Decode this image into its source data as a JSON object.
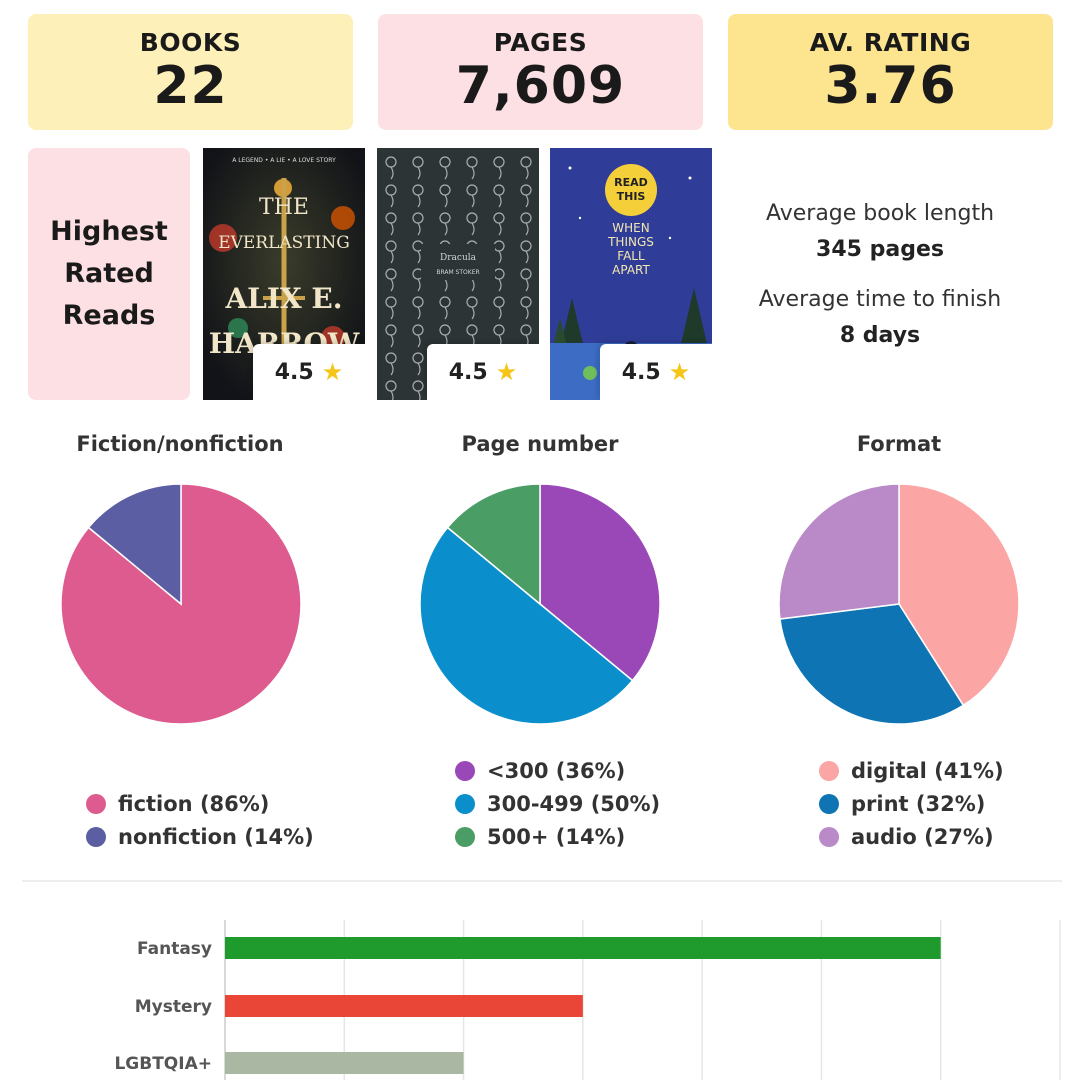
{
  "stats": {
    "books_label": "BOOKS",
    "books_value": "22",
    "pages_label": "PAGES",
    "pages_value": "7,609",
    "rating_label": "AV. RATING",
    "rating_value": "3.76"
  },
  "highest_rated": {
    "title_lines": [
      "Highest",
      "Rated",
      "Reads"
    ],
    "books": [
      {
        "rating": "4.5",
        "cover_text": [
          "A LEGEND • A LIE • A LOVE STORY",
          "THE",
          "EVERLASTING",
          "ALIX E.",
          "HARROW"
        ]
      },
      {
        "rating": "4.5",
        "cover_text": [
          "Dracula",
          "BRAM STOKER"
        ]
      },
      {
        "rating": "4.5",
        "cover_text": [
          "READ",
          "THIS",
          "WHEN",
          "THINGS",
          "FALL",
          "APART"
        ]
      }
    ],
    "star_icon": "star-icon"
  },
  "book_stats": {
    "avg_length_label": "Average book length",
    "avg_length_value": "345 pages",
    "avg_time_label": "Average time to finish",
    "avg_time_value": "8 days"
  },
  "chart_data": [
    {
      "type": "pie",
      "title": "Fiction/nonfiction",
      "slices": [
        {
          "label": "fiction (86%)",
          "value": 86,
          "color": "#de5b8f"
        },
        {
          "label": "nonfiction (14%)",
          "value": 14,
          "color": "#5c5ea3"
        }
      ]
    },
    {
      "type": "pie",
      "title": "Page number",
      "slices": [
        {
          "label": "<300 (36%)",
          "value": 36,
          "color": "#9a47b8"
        },
        {
          "label": "300-499 (50%)",
          "value": 50,
          "color": "#0b8fcc"
        },
        {
          "label": "500+ (14%)",
          "value": 14,
          "color": "#4a9d65"
        }
      ]
    },
    {
      "type": "pie",
      "title": "Format",
      "slices": [
        {
          "label": "digital (41%)",
          "value": 41,
          "color": "#fba5a5"
        },
        {
          "label": "print (32%)",
          "value": 32,
          "color": "#0e74b3"
        },
        {
          "label": "audio (27%)",
          "value": 27,
          "color": "#ba8ac8"
        }
      ]
    },
    {
      "type": "bar",
      "orientation": "horizontal",
      "categories": [
        "Fantasy",
        "Mystery",
        "LGBTQIA+"
      ],
      "values": [
        12,
        6,
        4
      ],
      "colors": [
        "#1f9a2c",
        "#ea4637",
        "#a9b7a3"
      ],
      "xlim": [
        0,
        14
      ],
      "grid": true
    }
  ]
}
